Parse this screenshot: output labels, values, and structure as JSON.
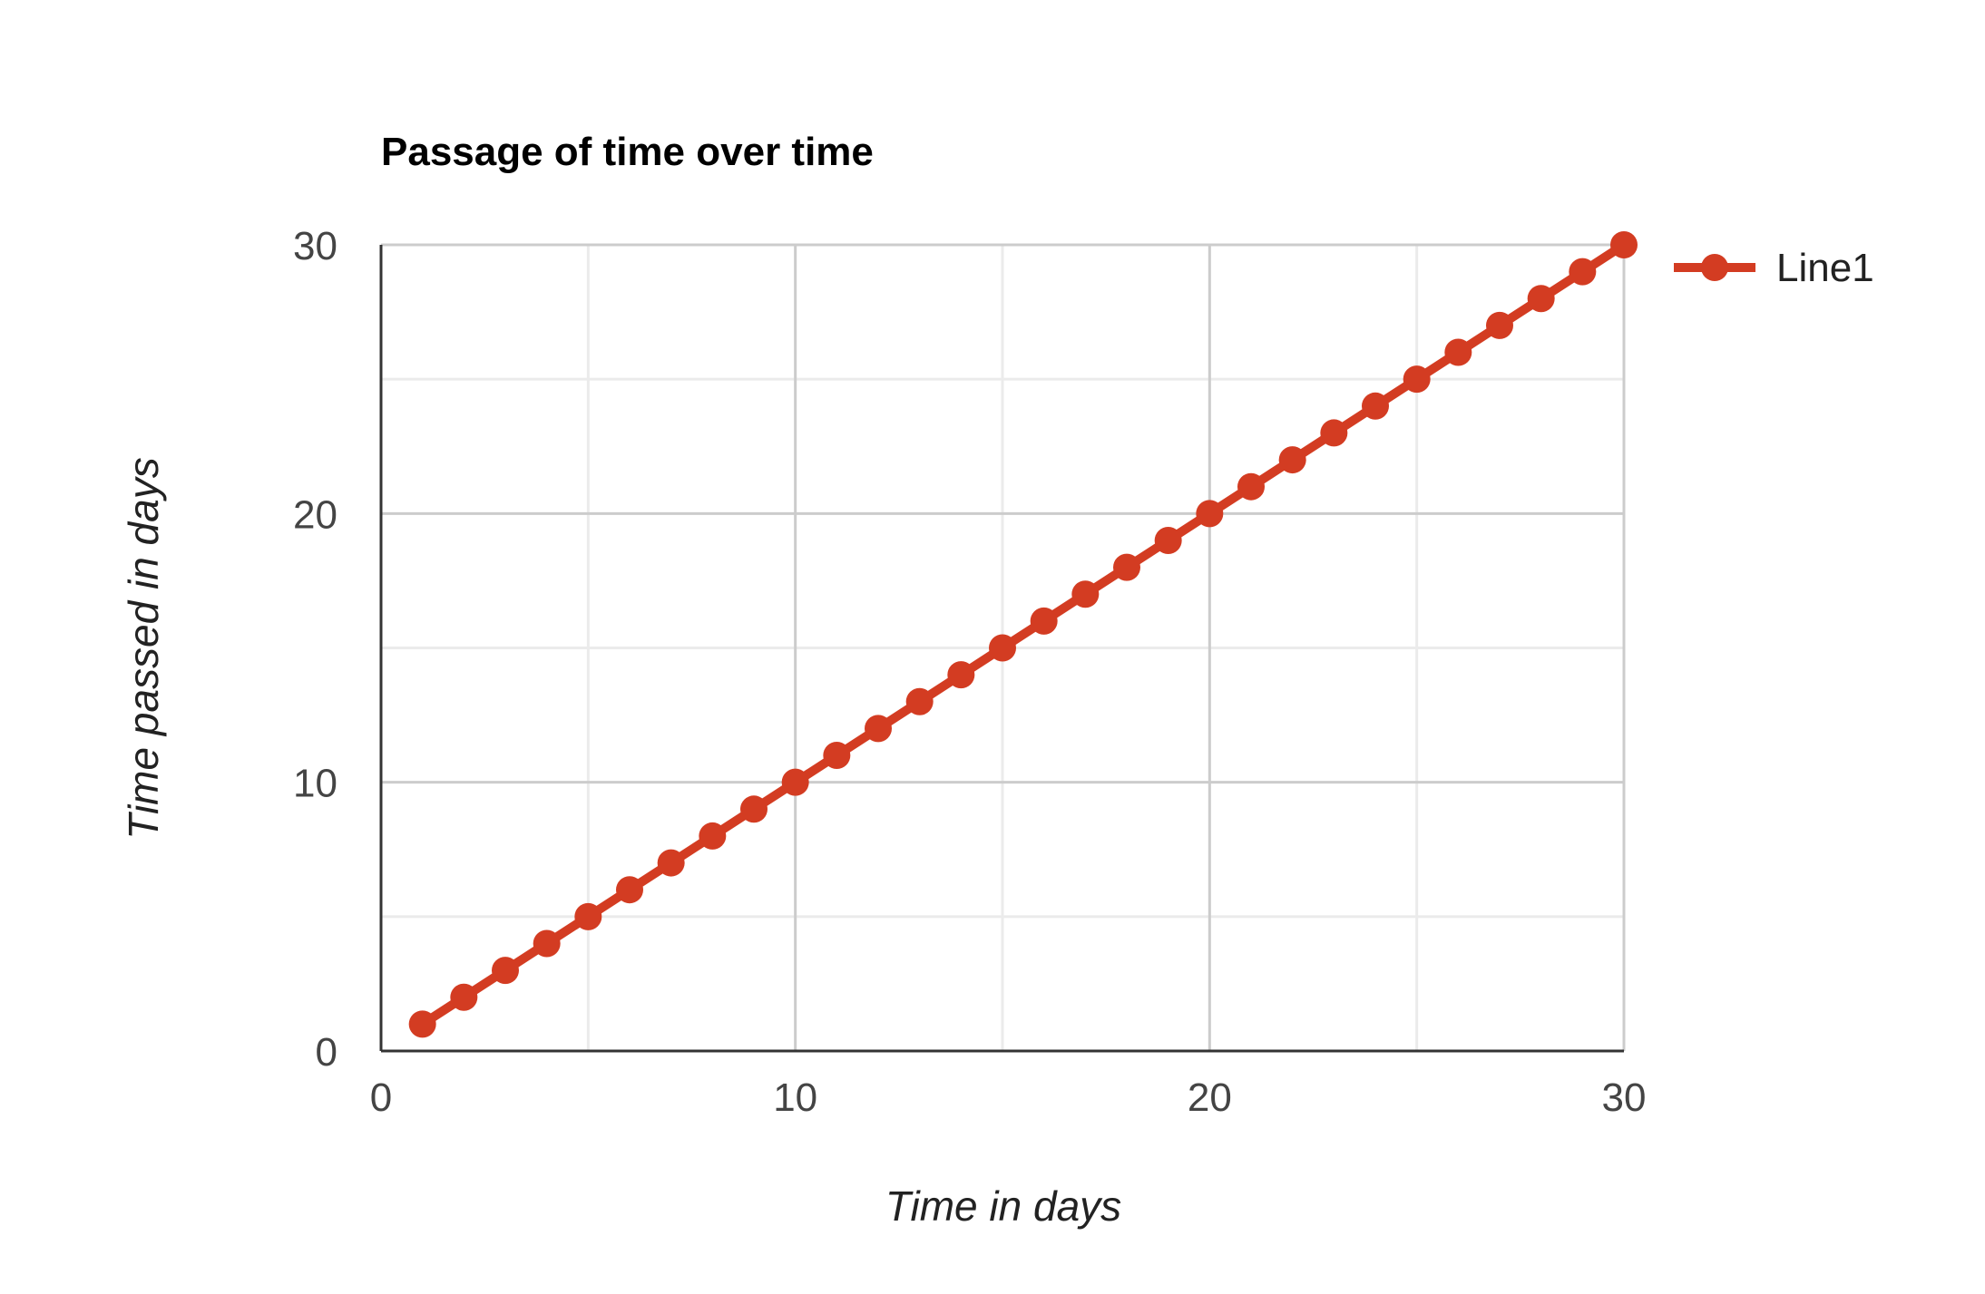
{
  "chart_data": {
    "type": "line",
    "title": "Passage of time over time",
    "xlabel": "Time in days",
    "ylabel": "Time passed in days",
    "xlim": [
      0,
      30
    ],
    "ylim": [
      0,
      30
    ],
    "x_ticks": [
      0,
      10,
      20,
      30
    ],
    "y_ticks": [
      0,
      10,
      20,
      30
    ],
    "grid": true,
    "legend_position": "right",
    "series": [
      {
        "name": "Line1",
        "color": "#d33c22",
        "x": [
          1,
          2,
          3,
          4,
          5,
          6,
          7,
          8,
          9,
          10,
          11,
          12,
          13,
          14,
          15,
          16,
          17,
          18,
          19,
          20,
          21,
          22,
          23,
          24,
          25,
          26,
          27,
          28,
          29,
          30
        ],
        "y": [
          1,
          2,
          3,
          4,
          5,
          6,
          7,
          8,
          9,
          10,
          11,
          12,
          13,
          14,
          15,
          16,
          17,
          18,
          19,
          20,
          21,
          22,
          23,
          24,
          25,
          26,
          27,
          28,
          29,
          30
        ]
      }
    ]
  }
}
